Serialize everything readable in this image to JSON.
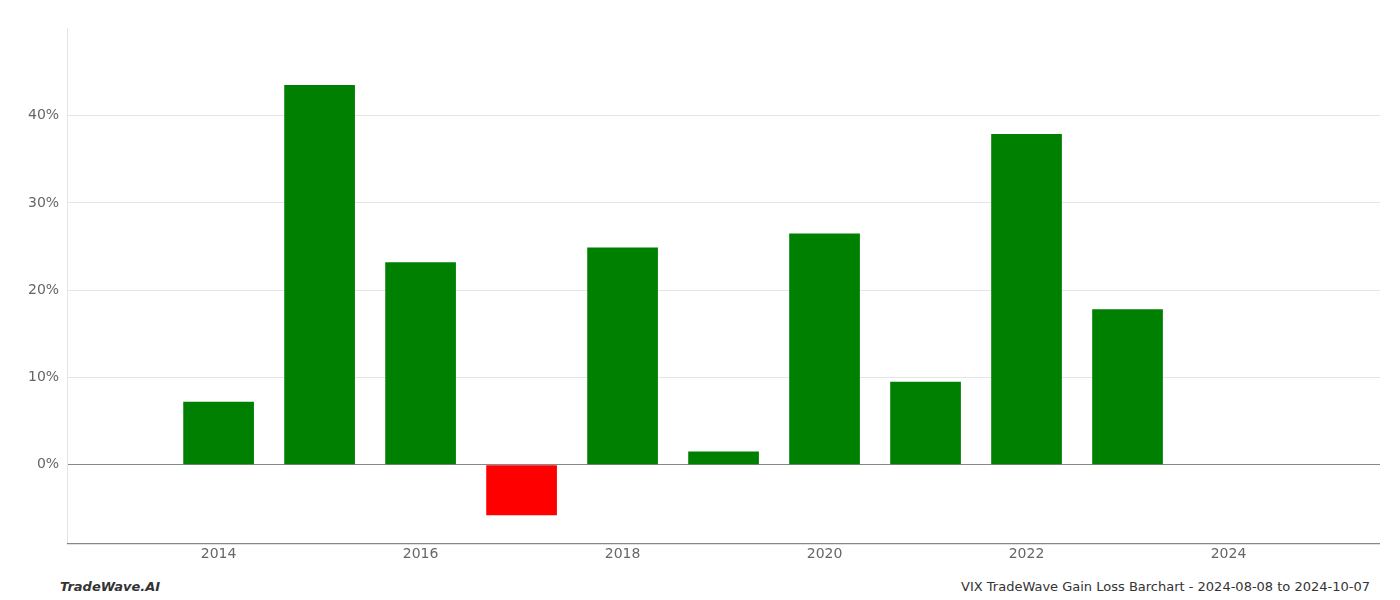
{
  "chart_data": {
    "type": "bar",
    "x": [
      2014,
      2015,
      2016,
      2017,
      2018,
      2019,
      2020,
      2021,
      2022,
      2023
    ],
    "values": [
      0.072,
      0.435,
      0.232,
      -0.058,
      0.249,
      0.015,
      0.265,
      0.095,
      0.379,
      0.178
    ],
    "colors": [
      "#008000",
      "#008000",
      "#008000",
      "#ff0000",
      "#008000",
      "#008000",
      "#008000",
      "#008000",
      "#008000",
      "#008000"
    ],
    "xlim": [
      2012.5,
      2025.5
    ],
    "xticks": [
      2014,
      2016,
      2018,
      2020,
      2022,
      2024
    ],
    "ylim": [
      -0.09,
      0.5
    ],
    "yticks": [
      {
        "value": 0.0,
        "label": "0%"
      },
      {
        "value": 0.1,
        "label": "10%"
      },
      {
        "value": 0.2,
        "label": "20%"
      },
      {
        "value": 0.3,
        "label": "30%"
      },
      {
        "value": 0.4,
        "label": "40%"
      }
    ],
    "grid": "y",
    "annotations": [
      "TradeWave.AI",
      "VIX TradeWave Gain Loss Barchart - 2024-08-08 to 2024-10-07"
    ]
  }
}
